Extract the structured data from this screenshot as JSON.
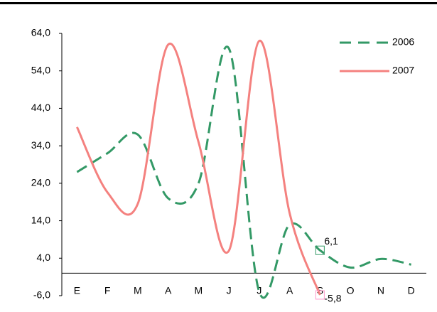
{
  "chart_data": {
    "type": "line",
    "categories": [
      "E",
      "F",
      "M",
      "A",
      "M",
      "J",
      "J",
      "A",
      "S",
      "O",
      "N",
      "D"
    ],
    "series": [
      {
        "name": "2006",
        "color": "#339966",
        "dash": true,
        "values": [
          27,
          32,
          37,
          20,
          24,
          60,
          -5,
          13,
          6.1,
          1.5,
          3.8,
          2.3
        ],
        "value_labels": [
          null,
          null,
          null,
          null,
          null,
          null,
          null,
          null,
          "6,1",
          null,
          null,
          null
        ]
      },
      {
        "name": "2007",
        "color": "#f4817f",
        "dash": false,
        "values": [
          39,
          21.6,
          18.5,
          61,
          35,
          6,
          62,
          16,
          -5.8,
          null,
          null,
          null
        ],
        "value_labels": [
          null,
          null,
          null,
          null,
          null,
          null,
          null,
          null,
          "-5,8",
          null,
          null,
          null
        ]
      }
    ],
    "ylim": [
      -6,
      64
    ],
    "yticks": [
      {
        "value": -6,
        "label": "-6,0"
      },
      {
        "value": 4,
        "label": "4,0"
      },
      {
        "value": 14,
        "label": "14,0"
      },
      {
        "value": 24,
        "label": "24,0"
      },
      {
        "value": 34,
        "label": "34,0"
      },
      {
        "value": 44,
        "label": "44,0"
      },
      {
        "value": 54,
        "label": "54,0"
      },
      {
        "value": 64,
        "label": "64,0"
      }
    ],
    "grid": false,
    "legend": "top-right"
  }
}
